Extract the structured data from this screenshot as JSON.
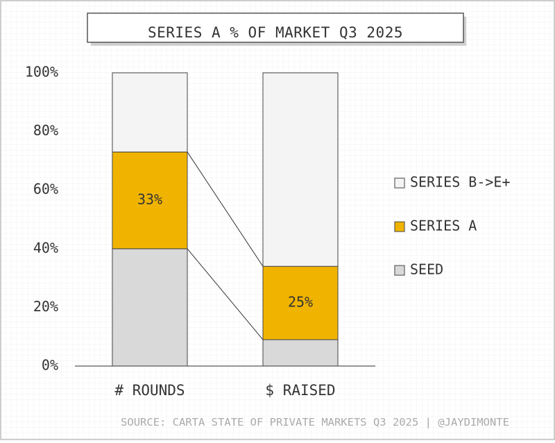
{
  "chart_data": {
    "type": "bar",
    "stacked": true,
    "normalized": true,
    "title": "SERIES A % OF MARKET Q3 2025",
    "categories": [
      "# ROUNDS",
      "$ RAISED"
    ],
    "series": [
      {
        "name": "SEED",
        "values": [
          40,
          9
        ],
        "color": "#d9d9d9"
      },
      {
        "name": "SERIES A",
        "values": [
          33,
          25
        ],
        "color": "#f0b400"
      },
      {
        "name": "SERIES B->E+",
        "values": [
          27,
          66
        ],
        "color": "#f4f4f4"
      }
    ],
    "data_labels": [
      "33%",
      "25%"
    ],
    "ylim": [
      0,
      100
    ],
    "yticks": [
      "0%",
      "20%",
      "40%",
      "60%",
      "80%",
      "100%"
    ],
    "legend_position": "right",
    "legend_order": [
      "SERIES B->E+",
      "SERIES A",
      "SEED"
    ],
    "grid": true,
    "connector_lines": true,
    "source": "SOURCE: CARTA STATE OF PRIVATE MARKETS Q3 2025 | @JAYDIMONTE"
  }
}
